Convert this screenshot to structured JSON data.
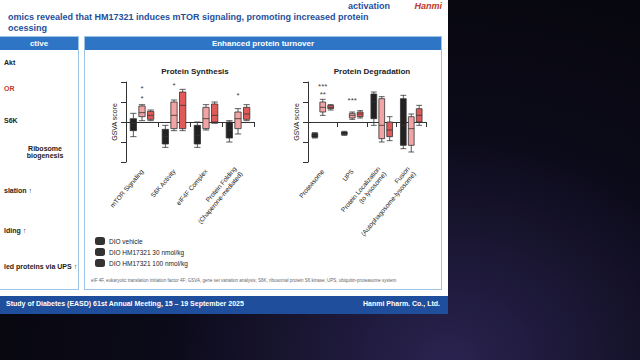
{
  "slide": {
    "title_lines": [
      "activation",
      "omics revealed that HM17321 induces mTOR signaling, promoting increased protein",
      "ocessing"
    ],
    "logo": "Hanmi",
    "left_panel": {
      "header": "ctive",
      "items": [
        "Akt",
        "OR",
        "S6K",
        "Ribosome biogenesis",
        "slation ↑",
        "lding ↑",
        "led proteins via UPS ↑"
      ]
    },
    "center_panel": {
      "header": "Enhanced protein turnover",
      "footnote": "eIF 4F, eukaryotic translation initiation factor 4F; GSVA, gene set variation analysis; S6K, ribosomal protein S6 kinase; UPS, ubiquitin-proteasome system"
    },
    "footer": {
      "left": "Study of Diabetes (EASD) 61st Annual Meeting, 15 – 19 September 2025",
      "right": "Hanmi Pharm. Co., Ltd."
    }
  },
  "chart_data": [
    {
      "type": "boxplot",
      "title": "Protein Synthesis",
      "y_label": "GSVA score",
      "categories": [
        "mTOR Signaling",
        "S6K Activity",
        "eIF4F Complex",
        "Protein Folding\n(Chaperone-mediated)"
      ],
      "series": [
        {
          "name": "DIO vehicle",
          "color": "#222222",
          "values": [
            [
              -0.22,
              -0.13,
              -0.02,
              0.05,
              0.13
            ],
            [
              -0.38,
              -0.33,
              -0.22,
              -0.11,
              -0.05
            ],
            [
              -0.38,
              -0.33,
              -0.2,
              -0.05,
              0.0
            ],
            [
              -0.3,
              -0.24,
              -0.12,
              0.0,
              0.02
            ]
          ]
        },
        {
          "name": "DIO HM17321 30 nmol/kg",
          "color": "#f2a3a3",
          "values": [
            [
              0.02,
              0.08,
              0.14,
              0.24,
              0.26
            ],
            [
              -0.13,
              -0.1,
              0.1,
              0.3,
              0.33
            ],
            [
              -0.12,
              -0.1,
              0.05,
              0.22,
              0.26
            ],
            [
              -0.18,
              -0.1,
              0.05,
              0.15,
              0.2
            ]
          ]
        },
        {
          "name": "DIO HM17321 100 nmol/kg",
          "color": "#e05a5a",
          "values": [
            [
              0.02,
              0.04,
              0.1,
              0.16,
              0.18
            ],
            [
              -0.13,
              -0.1,
              0.25,
              0.45,
              0.49
            ],
            [
              -0.02,
              0.0,
              0.1,
              0.27,
              0.3
            ],
            [
              0.02,
              0.04,
              0.12,
              0.22,
              0.26
            ]
          ]
        }
      ],
      "ylim": [
        -0.6,
        0.6
      ],
      "yticks": [
        -0.6,
        -0.3,
        0,
        0.3,
        0.6
      ],
      "tick_labels": "x",
      "legend": "lower left",
      "annotations": [
        {
          "category": "mTOR Signaling",
          "y": 0.36,
          "text": "*"
        },
        {
          "category": "mTOR Signaling",
          "y": 0.5,
          "text": "*"
        },
        {
          "category": "S6K Activity",
          "y": 0.55,
          "text": "*"
        },
        {
          "category": "Protein Folding\n(Chaperone-mediated)",
          "y": 0.4,
          "text": "*"
        }
      ]
    },
    {
      "type": "boxplot",
      "title": "Protein Degradation",
      "y_label": "GSVA score",
      "categories": [
        "Proteasome",
        "UPS",
        "Protein Localization\n(to lysosome)",
        "Fusion\n(Autophagosome-lysosome)"
      ],
      "series": [
        {
          "name": "DIO vehicle",
          "color": "#222222",
          "values": [
            [
              -0.24,
              -0.23,
              -0.2,
              -0.17,
              -0.16
            ],
            [
              -0.2,
              -0.19,
              -0.17,
              -0.15,
              -0.14
            ],
            [
              -0.05,
              0.05,
              0.3,
              0.42,
              0.45
            ],
            [
              -0.4,
              -0.35,
              -0.05,
              0.35,
              0.4
            ]
          ]
        },
        {
          "name": "DIO HM17321 30 nmol/kg",
          "color": "#f2a3a3",
          "values": [
            [
              0.1,
              0.15,
              0.22,
              0.3,
              0.34
            ],
            [
              0.04,
              0.06,
              0.1,
              0.13,
              0.15
            ],
            [
              -0.3,
              -0.25,
              -0.05,
              0.35,
              0.38
            ],
            [
              -0.45,
              -0.35,
              -0.1,
              0.08,
              0.12
            ]
          ]
        },
        {
          "name": "DIO HM17321 100 nmol/kg",
          "color": "#e05a5a",
          "values": [
            [
              0.18,
              0.2,
              0.22,
              0.25,
              0.26
            ],
            [
              0.06,
              0.08,
              0.12,
              0.15,
              0.17
            ],
            [
              -0.28,
              -0.22,
              -0.12,
              0.0,
              0.08
            ],
            [
              -0.05,
              0.0,
              0.1,
              0.2,
              0.25
            ]
          ]
        }
      ],
      "ylim": [
        -0.6,
        0.6
      ],
      "yticks": [
        -0.6,
        -0.3,
        0,
        0.3,
        0.6
      ],
      "tick_labels": "x",
      "annotations": [
        {
          "category": "Proteasome",
          "y": 0.42,
          "text": "**"
        },
        {
          "category": "Proteasome",
          "y": 0.54,
          "text": "***"
        },
        {
          "category": "UPS",
          "y": 0.32,
          "text": "***"
        }
      ]
    }
  ]
}
